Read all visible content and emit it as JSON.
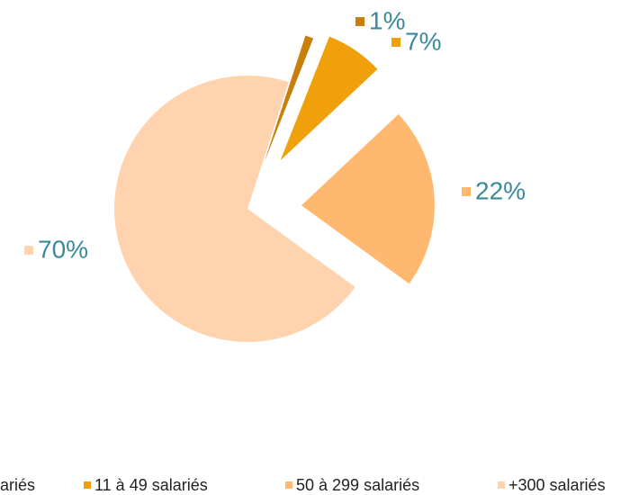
{
  "chart_data": {
    "type": "pie",
    "exploded": true,
    "categories": [
      "ariés",
      "11 à 49 salariés",
      "50 à 299 salariés",
      "+300 salariés"
    ],
    "values": [
      1,
      7,
      22,
      70
    ],
    "value_labels": [
      "1%",
      "7%",
      "22%",
      "70%"
    ],
    "colors": [
      "#c8800a",
      "#f0a00a",
      "#ffb870",
      "#ffd3ad"
    ],
    "legend": "bottom"
  }
}
